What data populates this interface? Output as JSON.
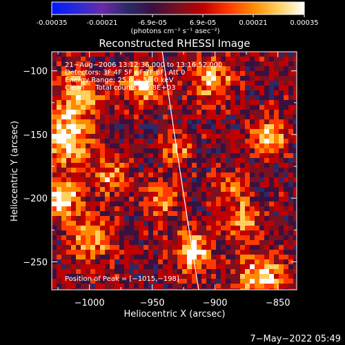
{
  "colorbar": {
    "ticks": [
      "-0.00035",
      "-0.00021",
      "-6.9e-05",
      "6.9e-05",
      "0.00021",
      "0.00035"
    ],
    "unit_label": "(photons cm⁻² s⁻¹ asec⁻²)",
    "range": [
      -0.00035,
      0.00035
    ],
    "colormap": [
      "#0018ff",
      "#2a2ad8",
      "#6a2aa8",
      "#2a2a6a",
      "#3a1040",
      "#7a1020",
      "#c00000",
      "#ff3a00",
      "#ff8a00",
      "#ffd060",
      "#ffffff"
    ]
  },
  "chart_data": {
    "type": "heatmap",
    "title": "Reconstructed RHESSI Image",
    "xlabel": "Heliocentric X (arcsec)",
    "ylabel": "Heliocentric Y (arcsec)",
    "xlim": [
      -1030,
      -835
    ],
    "ylim": [
      -272,
      -85
    ],
    "xticks": [
      -1000,
      -950,
      -900,
      -850
    ],
    "yticks": [
      -100,
      -150,
      -200,
      -250
    ],
    "xtick_labels": [
      "−1000",
      "−950",
      "−900",
      "−850"
    ],
    "ytick_labels": [
      "−100",
      "−150",
      "−200",
      "−250"
    ],
    "grid": false,
    "peak": [
      -1015,
      -198
    ],
    "limb_curve": [
      [
        -942,
        -85
      ],
      [
        -925,
        -200
      ],
      [
        -913,
        -272
      ]
    ]
  },
  "info": {
    "line1": "21−Aug−2006 13:12:36.000 to 13:16:52.000",
    "line2": "Detectors: 3F 4F 5F 6F 7F 8F, Att 0",
    "line3": "Energy Range: 25.0 − 50.0 keV",
    "line4": "Clean     Total counts: 7.68E+03",
    "peak_label": "Position of Peak = [−1015,−198]"
  },
  "footer": {
    "date": "7−May−2022 05:49"
  }
}
